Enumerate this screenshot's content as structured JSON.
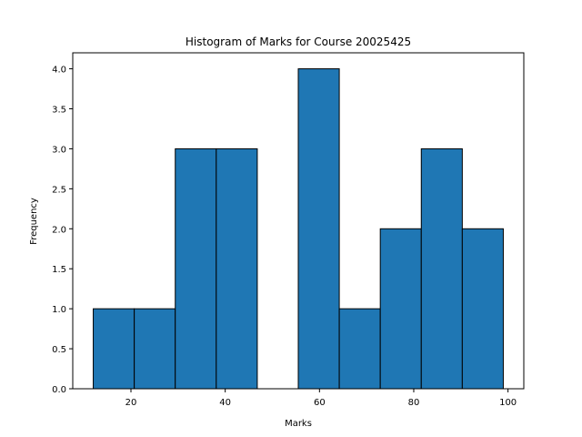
{
  "chart_data": {
    "type": "bar",
    "title": "Histogram of Marks for Course 20025425",
    "xlabel": "Marks",
    "ylabel": "Frequency",
    "bins": [
      {
        "start": 12.0,
        "end": 20.7,
        "count": 1
      },
      {
        "start": 20.7,
        "end": 29.4,
        "count": 1
      },
      {
        "start": 29.4,
        "end": 38.1,
        "count": 3
      },
      {
        "start": 38.1,
        "end": 46.8,
        "count": 3
      },
      {
        "start": 46.8,
        "end": 55.5,
        "count": 0
      },
      {
        "start": 55.5,
        "end": 64.2,
        "count": 4
      },
      {
        "start": 64.2,
        "end": 72.9,
        "count": 1
      },
      {
        "start": 72.9,
        "end": 81.6,
        "count": 2
      },
      {
        "start": 81.6,
        "end": 90.3,
        "count": 3
      },
      {
        "start": 90.3,
        "end": 99.0,
        "count": 2
      }
    ],
    "xlim": [
      7.65,
      103.35
    ],
    "ylim": [
      0,
      4.2
    ],
    "xticks": [
      20,
      40,
      60,
      80,
      100
    ],
    "yticks": [
      0.0,
      0.5,
      1.0,
      1.5,
      2.0,
      2.5,
      3.0,
      3.5,
      4.0
    ],
    "grid": false,
    "colors": {
      "bar_fill": "#1f77b4",
      "bar_edge": "#000000"
    }
  }
}
